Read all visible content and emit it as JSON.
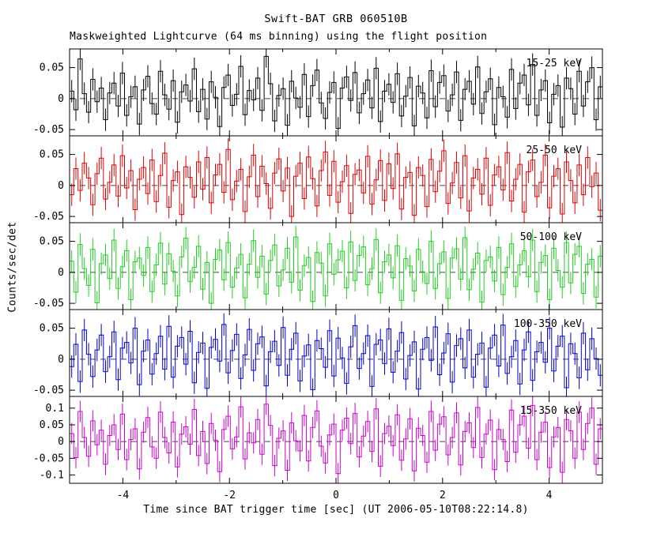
{
  "title": "Swift-BAT GRB 060510B",
  "subtitle": "Maskweighted Lightcurve (64 ms binning) using the flight position",
  "x_axis": {
    "label": "Time since BAT trigger time [sec] (UT 2006-05-10T08:22:14.8)",
    "range": [
      -5,
      5
    ],
    "ticks": [
      -4,
      -2,
      0,
      2,
      4
    ]
  },
  "y_axis": {
    "label": "Counts/sec/det"
  },
  "chart_data": {
    "type": "line",
    "style": "step-histogram-with-errorbars",
    "binning_ms": 64,
    "x_range": [
      -5,
      5
    ],
    "x_ticks": [
      -4,
      -2,
      0,
      2,
      4
    ],
    "grid": false,
    "zero_line": "dashed",
    "panels": [
      {
        "label": "15-25 keV",
        "color": "#000000",
        "ylim": [
          -0.06,
          0.08
        ],
        "yticks": [
          0.05,
          0,
          -0.05
        ],
        "error": 0.018,
        "values": [
          0.012,
          -0.018,
          0.064,
          0.008,
          -0.022,
          0.031,
          -0.005,
          0.017,
          -0.034,
          0.009,
          0.025,
          -0.012,
          0.041,
          -0.027,
          0.003,
          0.019,
          -0.041,
          0.014,
          0.036,
          -0.008,
          -0.025,
          0.044,
          0.006,
          -0.017,
          0.029,
          -0.038,
          0.011,
          0.022,
          -0.004,
          0.048,
          -0.021,
          0.015,
          -0.033,
          0.027,
          0.002,
          -0.045,
          0.018,
          0.038,
          -0.011,
          0.007,
          0.052,
          -0.026,
          0.013,
          -0.002,
          0.033,
          -0.019,
          0.068,
          0.024,
          -0.036,
          0.005,
          0.016,
          -0.043,
          0.028,
          0.001,
          -0.014,
          0.039,
          -0.029,
          0.021,
          0.046,
          -0.007,
          -0.032,
          0.01,
          0.026,
          -0.048,
          0.017,
          0.035,
          -0.003,
          0.042,
          -0.023,
          0.008,
          0.03,
          -0.015,
          0.049,
          -0.037,
          0.012,
          0.023,
          -0.006,
          0.04,
          -0.028,
          0.004,
          0.034,
          -0.044,
          0.02,
          0.009,
          -0.031,
          0.045,
          -0.013,
          0.026,
          0.037,
          -0.02,
          0.006,
          0.043,
          -0.035,
          0.015,
          0.028,
          -0.009,
          0.051,
          -0.024,
          0.011,
          0.032,
          -0.042,
          0.018,
          0.003,
          -0.03,
          0.047,
          -0.016,
          0.025,
          0.038,
          -0.01,
          0.055,
          -0.027,
          0.014,
          0.029,
          -0.039,
          0.007,
          0.021,
          -0.046,
          0.033,
          0.016,
          -0.025,
          0.044,
          -0.012,
          0.027,
          0.05,
          -0.034,
          0.019
        ]
      },
      {
        "label": "25-50 keV",
        "color": "#dd0000",
        "ylim": [
          -0.06,
          0.08
        ],
        "yticks": [
          0.05,
          0,
          -0.05
        ],
        "error": 0.018,
        "values": [
          -0.015,
          0.027,
          -0.008,
          0.036,
          0.012,
          -0.031,
          0.019,
          0.044,
          -0.022,
          0.005,
          0.033,
          -0.017,
          0.048,
          -0.004,
          0.024,
          -0.039,
          0.01,
          0.029,
          -0.013,
          0.041,
          -0.026,
          0.016,
          0.052,
          -0.035,
          0.008,
          0.022,
          -0.047,
          0.03,
          0.013,
          -0.019,
          0.038,
          -0.006,
          0.045,
          -0.028,
          0.017,
          0.034,
          -0.011,
          0.058,
          -0.023,
          0.007,
          0.026,
          -0.042,
          0.014,
          0.049,
          -0.018,
          0.031,
          0.003,
          -0.037,
          0.02,
          0.043,
          -0.009,
          0.028,
          -0.05,
          0.015,
          0.036,
          -0.021,
          0.046,
          0.011,
          -0.033,
          0.024,
          0.054,
          -0.016,
          0.039,
          -0.027,
          0.006,
          0.032,
          -0.045,
          0.018,
          0.025,
          -0.012,
          0.047,
          -0.03,
          0.009,
          0.04,
          -0.024,
          0.035,
          -0.005,
          0.051,
          -0.038,
          0.013,
          0.021,
          -0.048,
          0.029,
          0.016,
          -0.034,
          0.042,
          -0.01,
          0.023,
          0.056,
          -0.029,
          0.004,
          0.037,
          -0.02,
          0.048,
          -0.041,
          0.012,
          0.026,
          -0.014,
          0.044,
          -0.032,
          0.017,
          0.03,
          -0.007,
          0.053,
          -0.025,
          0.01,
          0.034,
          -0.043,
          0.022,
          0.041,
          -0.018,
          0.005,
          0.049,
          -0.036,
          0.015,
          0.027,
          -0.046,
          0.038,
          0.008,
          -0.028,
          0.033,
          -0.015,
          0.045,
          -0.002,
          0.02,
          -0.04
        ]
      },
      {
        "label": "50-100 keV",
        "color": "#22cc22",
        "ylim": [
          -0.06,
          0.08
        ],
        "yticks": [
          0.05,
          0,
          -0.05
        ],
        "error": 0.018,
        "values": [
          0.018,
          -0.032,
          0.045,
          0.006,
          -0.021,
          0.037,
          -0.049,
          0.014,
          0.028,
          -0.01,
          0.052,
          -0.026,
          0.009,
          0.035,
          -0.044,
          0.017,
          0.023,
          -0.005,
          0.04,
          -0.031,
          0.012,
          0.047,
          -0.019,
          0.03,
          0.002,
          -0.038,
          0.025,
          0.055,
          -0.015,
          0.008,
          0.042,
          -0.027,
          0.016,
          -0.05,
          0.021,
          0.036,
          -0.012,
          0.048,
          -0.024,
          0.007,
          0.029,
          -0.041,
          0.013,
          0.051,
          -0.008,
          0.026,
          -0.035,
          0.019,
          0.044,
          -0.022,
          0.004,
          0.039,
          -0.016,
          0.057,
          -0.029,
          0.011,
          0.024,
          -0.047,
          0.032,
          0.015,
          -0.038,
          0.046,
          -0.003,
          0.02,
          0.034,
          -0.025,
          0.049,
          -0.013,
          0.027,
          0.041,
          -0.02,
          0.006,
          0.053,
          -0.033,
          0.017,
          0.028,
          -0.009,
          0.043,
          -0.045,
          0.022,
          0.01,
          -0.03,
          0.037,
          0.001,
          -0.018,
          0.05,
          -0.026,
          0.014,
          0.033,
          -0.042,
          0.023,
          0.038,
          -0.011,
          0.056,
          -0.028,
          0.005,
          0.031,
          -0.048,
          0.019,
          0.025,
          -0.014,
          0.04,
          -0.036,
          0.008,
          0.046,
          -0.023,
          0.012,
          0.035,
          -0.007,
          0.052,
          -0.031,
          0.016,
          0.027,
          -0.044,
          0.039,
          0.003,
          -0.024,
          0.048,
          -0.017,
          0.029,
          0.042,
          -0.034,
          0.013,
          0.021,
          -0.04,
          0.026
        ]
      },
      {
        "label": "100-350 keV",
        "color": "#0000cc",
        "ylim": [
          -0.06,
          0.08
        ],
        "yticks": [
          0.05,
          0,
          -0.05
        ],
        "error": 0.018,
        "values": [
          -0.012,
          0.024,
          -0.036,
          0.047,
          0.008,
          -0.028,
          0.015,
          0.039,
          -0.02,
          0.004,
          0.044,
          -0.033,
          0.018,
          0.027,
          -0.006,
          0.05,
          -0.041,
          0.013,
          0.031,
          -0.024,
          0.009,
          0.037,
          -0.016,
          0.053,
          -0.029,
          0.021,
          0.035,
          -0.008,
          0.045,
          -0.038,
          0.011,
          0.026,
          -0.047,
          0.019,
          0.032,
          -0.003,
          0.056,
          -0.022,
          0.014,
          0.04,
          -0.031,
          0.007,
          0.048,
          -0.018,
          0.025,
          0.036,
          -0.043,
          0.012,
          0.029,
          -0.01,
          0.051,
          -0.026,
          0.016,
          0.042,
          -0.035,
          0.005,
          0.023,
          -0.049,
          0.03,
          0.017,
          -0.013,
          0.046,
          -0.027,
          0.034,
          0.002,
          -0.039,
          0.02,
          0.054,
          -0.015,
          0.009,
          0.038,
          -0.044,
          0.024,
          0.031,
          -0.007,
          0.049,
          -0.021,
          0.013,
          0.043,
          -0.032,
          0.006,
          0.028,
          -0.048,
          0.016,
          0.035,
          -0.002,
          0.052,
          -0.025,
          0.01,
          0.041,
          -0.037,
          0.022,
          0.033,
          -0.014,
          0.047,
          -0.029,
          0.008,
          0.026,
          -0.045,
          0.018,
          0.039,
          -0.011,
          0.055,
          -0.023,
          0.004,
          0.03,
          -0.04,
          0.015,
          0.044,
          -0.034,
          0.012,
          0.027,
          -0.005,
          0.05,
          -0.019,
          0.021,
          0.037,
          -0.046,
          0.025,
          0.009,
          -0.03,
          0.042,
          -0.017,
          0.033,
          0.001,
          -0.026
        ]
      },
      {
        "label": "15-350 keV",
        "color": "#cc00cc",
        "ylim": [
          -0.125,
          0.135
        ],
        "yticks": [
          0.1,
          0.05,
          0,
          -0.05,
          -0.1
        ],
        "error": 0.032,
        "values": [
          0.024,
          -0.048,
          0.09,
          0.012,
          -0.044,
          0.062,
          -0.01,
          0.034,
          -0.068,
          0.018,
          0.05,
          -0.024,
          0.082,
          -0.054,
          0.006,
          0.038,
          -0.082,
          0.028,
          0.072,
          -0.016,
          -0.05,
          0.088,
          0.012,
          -0.034,
          0.058,
          -0.076,
          0.022,
          0.044,
          -0.008,
          0.096,
          -0.042,
          0.03,
          -0.066,
          0.054,
          0.004,
          -0.09,
          0.036,
          0.076,
          -0.022,
          0.014,
          0.104,
          -0.052,
          0.026,
          -0.004,
          0.066,
          -0.038,
          0.112,
          0.048,
          -0.072,
          0.01,
          0.032,
          -0.086,
          0.056,
          0.002,
          -0.028,
          0.078,
          -0.058,
          0.042,
          0.092,
          -0.014,
          -0.064,
          0.02,
          0.052,
          -0.096,
          0.034,
          0.07,
          -0.006,
          0.084,
          -0.046,
          0.016,
          0.06,
          -0.03,
          0.098,
          -0.074,
          0.024,
          0.046,
          -0.012,
          0.08,
          -0.056,
          0.008,
          0.068,
          -0.088,
          0.04,
          0.018,
          -0.062,
          0.09,
          -0.026,
          0.052,
          0.074,
          -0.04,
          0.012,
          0.086,
          -0.07,
          0.03,
          0.056,
          -0.018,
          0.102,
          -0.048,
          0.022,
          0.064,
          -0.084,
          0.036,
          0.006,
          -0.06,
          0.094,
          -0.032,
          0.05,
          0.076,
          -0.02,
          0.108,
          -0.054,
          0.028,
          0.058,
          -0.078,
          0.014,
          0.042,
          -0.092,
          0.066,
          0.032,
          -0.05,
          0.088,
          -0.024,
          0.054,
          0.1,
          -0.068,
          0.038
        ]
      }
    ]
  }
}
